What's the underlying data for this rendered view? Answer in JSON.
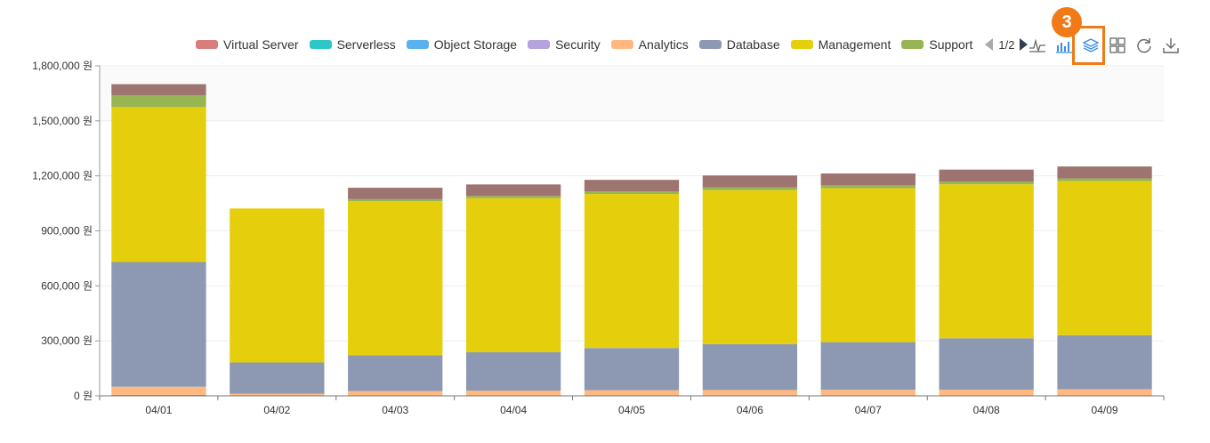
{
  "legend": {
    "items": [
      {
        "label": "Virtual Server",
        "color": "#d87c7c"
      },
      {
        "label": "Serverless",
        "color": "#2ec7c9"
      },
      {
        "label": "Object Storage",
        "color": "#5ab1ef"
      },
      {
        "label": "Security",
        "color": "#b6a2de"
      },
      {
        "label": "Analytics",
        "color": "#ffb980"
      },
      {
        "label": "Database",
        "color": "#8d98b3"
      },
      {
        "label": "Management",
        "color": "#e5cf0d"
      },
      {
        "label": "Support",
        "color": "#97b552"
      }
    ],
    "page_label": "1/2"
  },
  "toolbox": {
    "icons": [
      "line-chart-icon",
      "bar-chart-icon",
      "stack-icon",
      "tiled-icon",
      "restore-icon",
      "download-icon"
    ]
  },
  "annotation": {
    "step": "3",
    "color": "#f07a18"
  },
  "chart_data": {
    "type": "bar",
    "stacked": true,
    "categories": [
      "04/01",
      "04/02",
      "04/03",
      "04/04",
      "04/05",
      "04/06",
      "04/07",
      "04/08",
      "04/09"
    ],
    "ylim": [
      0,
      1800000
    ],
    "yticks": [
      0,
      300000,
      600000,
      900000,
      1200000,
      1500000,
      1800000
    ],
    "ytick_labels": [
      "0 원",
      "300,000 원",
      "600,000 원",
      "900,000 원",
      "1,200,000 원",
      "1,500,000 원",
      "1,800,000 원"
    ],
    "grid": true,
    "legend_position": "top-right",
    "series": [
      {
        "name": "Virtual Server",
        "color": "#d87c7c",
        "values": [
          5000,
          2000,
          4000,
          4000,
          4000,
          4000,
          4000,
          4000,
          4000
        ]
      },
      {
        "name": "Analytics",
        "color": "#ffb980",
        "values": [
          45000,
          10000,
          22000,
          24000,
          27000,
          28000,
          29000,
          30000,
          32000
        ]
      },
      {
        "name": "Database",
        "color": "#8d98b3",
        "values": [
          680000,
          170000,
          195000,
          210000,
          230000,
          250000,
          260000,
          280000,
          295000
        ]
      },
      {
        "name": "Management",
        "color": "#e5cf0d",
        "values": [
          845000,
          840000,
          840000,
          840000,
          840000,
          840000,
          840000,
          840000,
          840000
        ]
      },
      {
        "name": "Support",
        "color": "#97b552",
        "values": [
          65000,
          0,
          12000,
          12000,
          15000,
          15000,
          15000,
          15000,
          15000
        ]
      },
      {
        "name": "",
        "color": "#9d746f",
        "values": [
          60000,
          0,
          62000,
          63000,
          62000,
          65000,
          65000,
          65000,
          65000
        ]
      }
    ]
  }
}
